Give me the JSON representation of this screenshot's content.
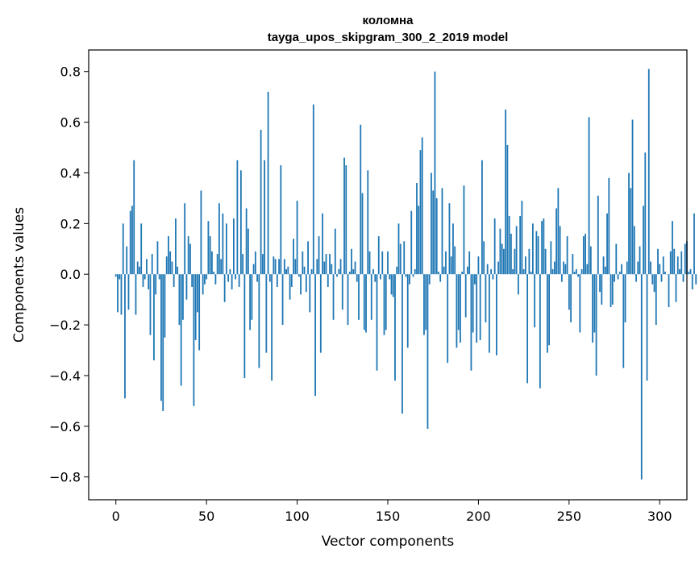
{
  "chart_data": {
    "type": "bar",
    "title": "коломна",
    "subtitle": "tayga_upos_skipgram_300_2_2019 model",
    "xlabel": "Vector components",
    "ylabel": "Components values",
    "xlim": [
      -15,
      315
    ],
    "ylim": [
      -0.89,
      0.885
    ],
    "xticks": [
      0,
      50,
      100,
      150,
      200,
      250,
      300
    ],
    "yticks": [
      -0.8,
      -0.6,
      -0.4,
      -0.2,
      0.0,
      0.2,
      0.4,
      0.6,
      0.8
    ],
    "ytick_labels": [
      "−0.8",
      "−0.6",
      "−0.4",
      "−0.2",
      "0.0",
      "0.2",
      "0.4",
      "0.6",
      "0.8"
    ],
    "grid": false,
    "bar_color": "#1f77b4",
    "values": [
      -0.01,
      -0.15,
      -0.02,
      -0.16,
      0.2,
      -0.49,
      0.11,
      -0.14,
      0.25,
      0.27,
      0.45,
      -0.16,
      0.05,
      0.03,
      0.2,
      -0.05,
      -0.02,
      0.06,
      -0.06,
      -0.24,
      0.08,
      -0.34,
      -0.08,
      0.13,
      -0.02,
      -0.5,
      -0.54,
      -0.25,
      0.07,
      0.15,
      0.09,
      0.05,
      -0.05,
      0.22,
      0.03,
      -0.2,
      -0.44,
      -0.18,
      0.28,
      -0.1,
      0.15,
      0.12,
      -0.05,
      -0.52,
      -0.26,
      -0.15,
      -0.3,
      0.33,
      -0.08,
      -0.04,
      -0.02,
      0.21,
      0.15,
      0.09,
      0.01,
      -0.04,
      0.08,
      0.28,
      0.06,
      0.24,
      -0.11,
      0.2,
      -0.03,
      0.02,
      -0.06,
      0.22,
      -0.02,
      0.45,
      -0.05,
      0.41,
      0.08,
      -0.41,
      0.26,
      0.18,
      -0.22,
      -0.18,
      0.04,
      0.09,
      -0.03,
      -0.37,
      0.57,
      0.08,
      0.45,
      -0.31,
      0.72,
      -0.03,
      -0.42,
      0.07,
      0.06,
      -0.05,
      0.06,
      0.43,
      -0.2,
      0.06,
      0.02,
      0.03,
      -0.1,
      -0.05,
      0.14,
      0.06,
      0.29,
      -0.01,
      -0.08,
      0.09,
      0.03,
      -0.07,
      0.13,
      -0.15,
      0.02,
      0.67,
      -0.48,
      0.06,
      0.15,
      -0.31,
      0.24,
      0.05,
      0.08,
      -0.05,
      0.08,
      0.04,
      -0.18,
      0.18,
      -0.01,
      0.02,
      0.06,
      -0.14,
      0.46,
      0.43,
      -0.2,
      0.01,
      0.1,
      0.02,
      0.05,
      -0.03,
      -0.18,
      0.59,
      0.32,
      -0.22,
      -0.23,
      0.41,
      0.09,
      -0.18,
      0.02,
      -0.03,
      -0.38,
      0.15,
      -0.02,
      0.09,
      -0.24,
      -0.22,
      0.09,
      -0.02,
      -0.08,
      -0.09,
      -0.42,
      0.03,
      0.2,
      0.12,
      -0.55,
      0.13,
      -0.01,
      -0.29,
      -0.04,
      0.25,
      -0.01,
      0.02,
      0.36,
      0.27,
      0.49,
      0.54,
      -0.24,
      -0.22,
      -0.61,
      -0.04,
      0.4,
      0.33,
      0.8,
      0.3,
      0.01,
      -0.03,
      0.34,
      0.03,
      0.09,
      -0.35,
      0.28,
      0.07,
      0.2,
      0.11,
      -0.29,
      -0.22,
      -0.27,
      0.01,
      0.35,
      -0.17,
      0.03,
      0.09,
      -0.38,
      -0.23,
      -0.04,
      -0.27,
      0.07,
      -0.26,
      0.45,
      0.13,
      -0.19,
      0.04,
      -0.31,
      0.02,
      -0.02,
      0.22,
      -0.32,
      0.05,
      0.18,
      0.12,
      0.1,
      0.65,
      0.51,
      0.23,
      0.16,
      0.02,
      0.1,
      0.19,
      -0.08,
      0.23,
      0.29,
      0.02,
      0.07,
      -0.43,
      0.1,
      0.01,
      0.2,
      -0.21,
      0.17,
      0.15,
      -0.45,
      0.21,
      0.22,
      0.1,
      -0.31,
      -0.28,
      0.13,
      0.02,
      0.05,
      0.26,
      0.34,
      0.19,
      -0.03,
      0.05,
      0.04,
      0.15,
      -0.14,
      -0.19,
      0.08,
      0.01,
      0.02,
      -0.01,
      -0.23,
      0.02,
      0.15,
      0.16,
      0.04,
      0.62,
      0.11,
      -0.27,
      -0.23,
      -0.4,
      0.31,
      -0.07,
      -0.12,
      0.07,
      0.03,
      0.24,
      0.38,
      -0.13,
      -0.12,
      -0.03,
      0.12,
      -0.02,
      0.01,
      0.04,
      -0.37,
      -0.19,
      0.05,
      0.4,
      0.34,
      0.61,
      0.19,
      -0.03,
      0.05,
      0.11,
      -0.81,
      0.27,
      0.48,
      -0.42,
      0.81,
      0.05,
      -0.04,
      -0.07,
      -0.2,
      0.1,
      0.04,
      -0.03,
      0.07,
      0.01,
      0.0,
      -0.13,
      0.09,
      0.21,
      0.1,
      -0.11,
      0.07,
      0.02,
      0.09,
      -0.03,
      0.12,
      0.13,
      0.01,
      0.02,
      -0.06,
      0.24,
      -0.04
    ]
  }
}
